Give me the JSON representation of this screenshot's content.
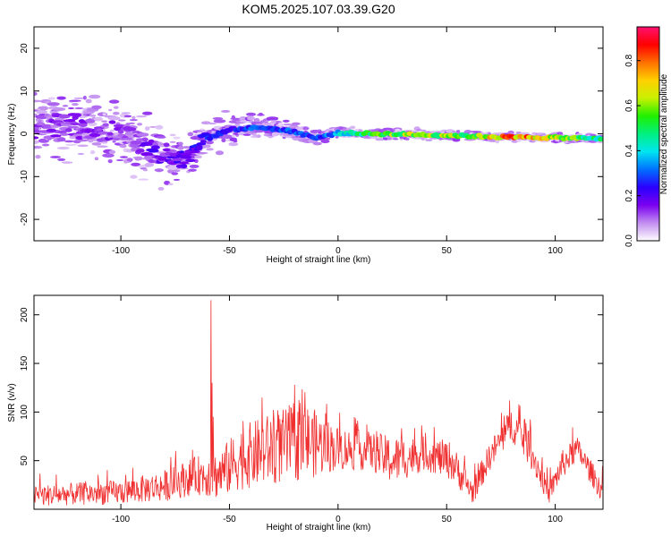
{
  "chart_data": [
    {
      "type": "heatmap",
      "title": "KOM5.2025.107.03.39.G20",
      "xlabel": "Height of straight line (km)",
      "ylabel": "Frequency (Hz)",
      "xlim": [
        -140,
        122
      ],
      "ylim": [
        -25,
        25
      ],
      "xticks": [
        -100,
        -50,
        0,
        50,
        100
      ],
      "yticks": [
        -20,
        -10,
        0,
        10,
        20
      ],
      "colorbar": {
        "label": "Normalized spectral amplitude",
        "range": [
          0,
          0.95
        ],
        "ticks": [
          "0.0",
          "0.2",
          "0.4",
          "0.6",
          "0.8"
        ],
        "colors": [
          "#ffffff",
          "#c28ef0",
          "#7a00f0",
          "#2a00ff",
          "#0070ff",
          "#00e6f0",
          "#00f080",
          "#20f000",
          "#c8f000",
          "#ffd000",
          "#ff7000",
          "#ff0000",
          "#ff1070"
        ]
      },
      "ridge": [
        {
          "x": -135,
          "f": 2.0,
          "amp": 0.15
        },
        {
          "x": -110,
          "f": 1.5,
          "amp": 0.17
        },
        {
          "x": -95,
          "f": -1.0,
          "amp": 0.14
        },
        {
          "x": -85,
          "f": -4.0,
          "amp": 0.2
        },
        {
          "x": -70,
          "f": -6.0,
          "amp": 0.25
        },
        {
          "x": -62,
          "f": -1.5,
          "amp": 0.28
        },
        {
          "x": -50,
          "f": 1.0,
          "amp": 0.25
        },
        {
          "x": -35,
          "f": 1.5,
          "amp": 0.35
        },
        {
          "x": -20,
          "f": 0.5,
          "amp": 0.32
        },
        {
          "x": -10,
          "f": -1.0,
          "amp": 0.3
        },
        {
          "x": 0,
          "f": 0.2,
          "amp": 0.4
        },
        {
          "x": 20,
          "f": 0.0,
          "amp": 0.62
        },
        {
          "x": 40,
          "f": -0.2,
          "amp": 0.7
        },
        {
          "x": 60,
          "f": -0.5,
          "amp": 0.6
        },
        {
          "x": 80,
          "f": -0.8,
          "amp": 0.92
        },
        {
          "x": 100,
          "f": -0.9,
          "amp": 0.7
        },
        {
          "x": 120,
          "f": -1.1,
          "amp": 0.5
        }
      ],
      "noise_spread": [
        {
          "x": -140,
          "sd": 5.0
        },
        {
          "x": -80,
          "sd": 4.0
        },
        {
          "x": -60,
          "sd": 2.5
        },
        {
          "x": -20,
          "sd": 1.2
        },
        {
          "x": 0,
          "sd": 0.7
        },
        {
          "x": 122,
          "sd": 0.5
        }
      ]
    },
    {
      "type": "line",
      "xlabel": "Height of straight line (km)",
      "ylabel": "SNR (v/v)",
      "xlim": [
        -140,
        122
      ],
      "ylim": [
        0,
        220
      ],
      "xticks": [
        -100,
        -50,
        0,
        50,
        100
      ],
      "yticks": [
        50,
        100,
        150,
        200
      ],
      "color": "#f03030",
      "envelope": [
        {
          "x": -140,
          "lo": 3,
          "hi": 25
        },
        {
          "x": -100,
          "lo": 5,
          "hi": 30
        },
        {
          "x": -80,
          "lo": 8,
          "hi": 40
        },
        {
          "x": -65,
          "lo": 15,
          "hi": 55
        },
        {
          "x": -55,
          "lo": 10,
          "hi": 60
        },
        {
          "x": -45,
          "lo": 20,
          "hi": 85
        },
        {
          "x": -30,
          "lo": 25,
          "hi": 100
        },
        {
          "x": -15,
          "lo": 30,
          "hi": 110
        },
        {
          "x": 0,
          "lo": 40,
          "hi": 85
        },
        {
          "x": 15,
          "lo": 40,
          "hi": 80
        },
        {
          "x": 25,
          "lo": 25,
          "hi": 75
        },
        {
          "x": 40,
          "lo": 40,
          "hi": 75
        },
        {
          "x": 52,
          "lo": 30,
          "hi": 70
        },
        {
          "x": 62,
          "lo": 5,
          "hi": 30
        },
        {
          "x": 70,
          "lo": 40,
          "hi": 70
        },
        {
          "x": 80,
          "lo": 70,
          "hi": 105
        },
        {
          "x": 88,
          "lo": 45,
          "hi": 85
        },
        {
          "x": 97,
          "lo": 5,
          "hi": 25
        },
        {
          "x": 103,
          "lo": 30,
          "hi": 60
        },
        {
          "x": 110,
          "lo": 50,
          "hi": 75
        },
        {
          "x": 122,
          "lo": 5,
          "hi": 30
        }
      ],
      "peaks": [
        {
          "x": -58.5,
          "y": 215
        },
        {
          "x": -58.0,
          "y": 130
        },
        {
          "x": -57.5,
          "y": 95
        },
        {
          "x": -20.0,
          "y": 128
        },
        {
          "x": -35.0,
          "y": 115
        },
        {
          "x": 79.0,
          "y": 112
        }
      ]
    }
  ]
}
